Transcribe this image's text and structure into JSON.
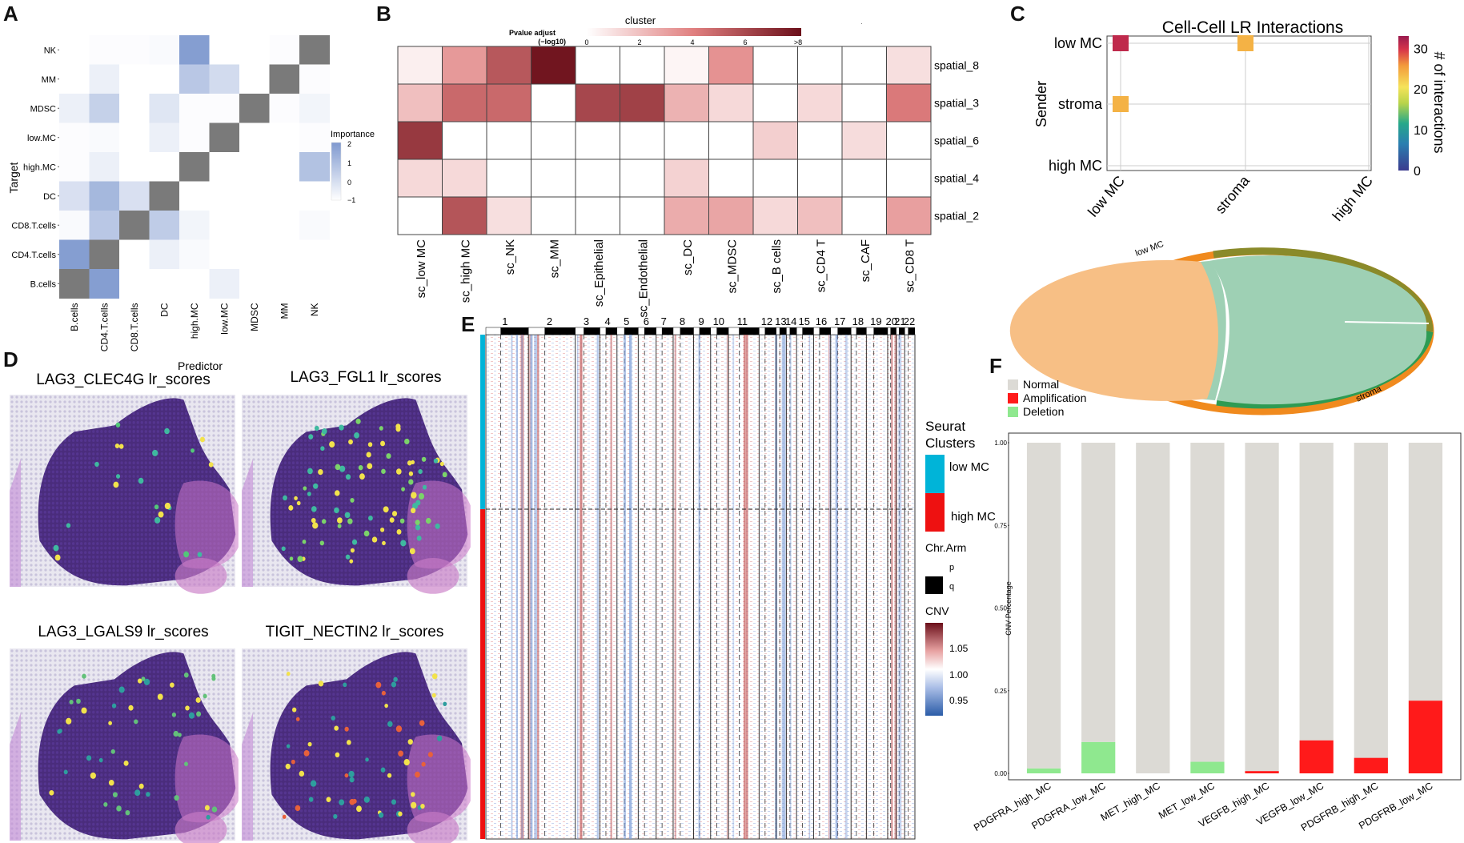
{
  "panels": {
    "A": "A",
    "B": "B",
    "C": "C",
    "D": "D",
    "E": "E",
    "F": "F"
  },
  "colors": {
    "importance_low": "#ffffff",
    "importance_high": "#7f99cf",
    "self_cell": "#7a7a7a",
    "heat_low": "#ffffff",
    "heat_high": "#6b0f1a",
    "cnv_amp": "#b2182b",
    "cnv_del": "#2166ac",
    "lowmc": "#00b4d8",
    "highmc": "#ee1111",
    "chord_lowmc": "#f08a1e",
    "chord_lowmc_fill": "#f7bf85",
    "chord_stroma": "#2e9b53",
    "chord_stroma_fill": "#9ed0b4",
    "normal": "#dcdad5",
    "amplification": "#ff1a1a",
    "deletion": "#8fe88f"
  },
  "panel_A": {
    "chart_data": {
      "type": "heatmap",
      "rows": [
        "NK",
        "MM",
        "MDSC",
        "low.MC",
        "high.MC",
        "DC",
        "CD8.T.cells",
        "CD4.T.cells",
        "B.cells"
      ],
      "cols": [
        "B.cells",
        "CD4.T.cells",
        "CD8.T.cells",
        "DC",
        "high.MC",
        "low.MC",
        "MDSC",
        "MM",
        "NK"
      ],
      "values": [
        [
          0,
          0.05,
          0.05,
          0.1,
          1.9,
          0,
          0,
          0.05,
          null
        ],
        [
          0,
          0.3,
          0,
          0,
          1.1,
          0.7,
          0,
          null,
          0.05
        ],
        [
          0.3,
          0.9,
          0,
          0.5,
          0.05,
          0.05,
          null,
          0.05,
          0.2
        ],
        [
          0.05,
          0.1,
          0,
          0.3,
          0.05,
          null,
          0,
          0,
          0.05
        ],
        [
          0.05,
          0.3,
          0,
          0,
          null,
          0,
          0,
          0,
          1.2
        ],
        [
          0.6,
          1.4,
          0.6,
          null,
          0,
          0,
          0,
          0,
          0
        ],
        [
          0.1,
          1.1,
          null,
          1.0,
          0.2,
          0,
          0,
          0,
          0.1
        ],
        [
          1.9,
          null,
          0,
          0.3,
          0.1,
          0,
          0,
          0,
          0
        ],
        [
          null,
          1.9,
          0,
          0,
          0,
          0.3,
          0,
          0,
          0
        ]
      ],
      "xlabel": "Predictor",
      "ylabel": "Target",
      "legend_title": "Importance",
      "legend_ticks": [
        "2",
        "1",
        "0",
        "−1"
      ]
    }
  },
  "panel_B": {
    "chart_data": {
      "type": "heatmap",
      "rows": [
        "spatial_8",
        "spatial_3",
        "spatial_6",
        "spatial_4",
        "spatial_2"
      ],
      "cols": [
        "sc_low MC",
        "sc_high MC",
        "sc_NK",
        "sc_MM",
        "sc_Epithelial",
        "sc_Endothelial",
        "sc_DC",
        "sc_MDSC",
        "sc_B cells",
        "sc_CD4 T",
        "sc_CAF",
        "sc_CD8 T"
      ],
      "values": [
        [
          0.5,
          3.2,
          5.4,
          7.8,
          0,
          0,
          0.3,
          3.4,
          0,
          0,
          0,
          1.0
        ],
        [
          2.0,
          4.8,
          4.8,
          0,
          6.0,
          6.2,
          2.4,
          1.2,
          0,
          1.2,
          0,
          4.2
        ],
        [
          6.5,
          0,
          0,
          0,
          0,
          0,
          0,
          0,
          1.5,
          0,
          1.1,
          0
        ],
        [
          1.2,
          1.2,
          0,
          0,
          0,
          0,
          1.4,
          0,
          0,
          0,
          0,
          0
        ],
        [
          0,
          5.5,
          1.0,
          0,
          0,
          0,
          2.6,
          2.8,
          1.2,
          2.0,
          0,
          3.0
        ]
      ],
      "legend_header": "cluster",
      "legend_title_line1": "Pvalue adjust",
      "legend_title_line2": "(−log10)",
      "legend_ticks": [
        "0",
        "2",
        "4",
        "6",
        ">8"
      ],
      "dot_label": "."
    }
  },
  "panel_C": {
    "chart_data": {
      "type": "scatter",
      "title": "Cell-Cell LR Interactions",
      "ylabel": "Sender",
      "x_categories": [
        "low MC",
        "stroma",
        "high MC"
      ],
      "y_categories": [
        "low MC",
        "stroma",
        "high MC"
      ],
      "points": [
        {
          "x": "low MC",
          "y": "low MC",
          "value": 31
        },
        {
          "x": "stroma",
          "y": "low MC",
          "value": 24
        },
        {
          "x": "low MC",
          "y": "stroma",
          "value": 24
        }
      ],
      "colorbar_label": "# of interactions",
      "colorbar_ticks": [
        "30",
        "20",
        "10",
        "0"
      ],
      "colorbar_range": [
        0,
        33
      ]
    },
    "chord": {
      "label_lowmc": "low MC",
      "label_stroma": "stroma"
    }
  },
  "panel_D": {
    "maps": [
      {
        "title": "LAG3_CLEC4G lr_scores"
      },
      {
        "title": "LAG3_FGL1 lr_scores"
      },
      {
        "title": "LAG3_LGALS9 lr_scores"
      },
      {
        "title": "TIGIT_NECTIN2 lr_scores"
      }
    ]
  },
  "panel_E": {
    "chromosomes": [
      "1",
      "2",
      "3",
      "4",
      "5",
      "6",
      "7",
      "8",
      "9",
      "10",
      "11",
      "12",
      "13",
      "14",
      "15",
      "16",
      "17",
      "18",
      "19",
      "20",
      "21",
      "22"
    ],
    "legend_clusters_title_1": "Seurat",
    "legend_clusters_title_2": "Clusters",
    "cluster_labels": [
      "low MC",
      "high MC"
    ],
    "arm_title": "Chr.Arm",
    "arm_labels": [
      "p",
      "q"
    ],
    "cnv_title": "CNV",
    "cnv_ticks": [
      "1.05",
      "1.00",
      "0.95"
    ]
  },
  "panel_F": {
    "chart_data": {
      "type": "bar",
      "categories": [
        "PDGFRA_high_MC",
        "PDGFRA_low_MC",
        "MET_high_MC",
        "MET_low_MC",
        "VEGFB_high_MC",
        "VEGFB_low_MC",
        "PDGFRB_high_MC",
        "PDGFRB_low_MC"
      ],
      "series": [
        {
          "name": "Deletion",
          "values": [
            0.015,
            0.095,
            0,
            0.035,
            0,
            0,
            0,
            0
          ]
        },
        {
          "name": "Amplification",
          "values": [
            0,
            0,
            0,
            0,
            0.007,
            0.1,
            0.047,
            0.22
          ]
        },
        {
          "name": "Normal",
          "values": [
            0.985,
            0.905,
            1.0,
            0.965,
            0.993,
            0.9,
            0.953,
            0.78
          ]
        }
      ],
      "ylabel": "CNV Percentage",
      "ylim": [
        0,
        1
      ],
      "yticks": [
        "0.00",
        "0.25",
        "0.50",
        "0.75",
        "1.00"
      ],
      "legend": [
        "Normal",
        "Amplification",
        "Deletion"
      ],
      "dot_label": "."
    }
  }
}
